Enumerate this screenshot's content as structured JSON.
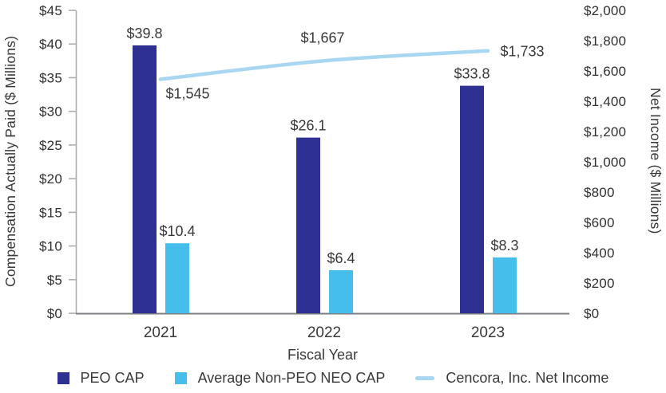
{
  "colors": {
    "axis_line": "#ACACAC",
    "baseline": "#7C7D80",
    "tick_text": "#303032",
    "label_text": "#39393B",
    "background": "#FFFFFF"
  },
  "chart_data": {
    "type": "combo-bar-line",
    "title": "",
    "categories": [
      "2021",
      "2022",
      "2023"
    ],
    "xlabel": "Fiscal Year",
    "left_axis": {
      "label": "Compensation Actually Paid ($ Millions)",
      "min": 0,
      "max": 45,
      "step": 5,
      "ticks": [
        "$45",
        "$40",
        "$35",
        "$30",
        "$25",
        "$20",
        "$15",
        "$10",
        "$5",
        "$0"
      ]
    },
    "right_axis": {
      "label": "Net Income ($ Millions)",
      "min": 0,
      "max": 2000,
      "step": 200,
      "ticks": [
        "$2,000",
        "$1,800",
        "$1,600",
        "$1,400",
        "$1,200",
        "$1,000",
        "$800",
        "$600",
        "$400",
        "$200",
        "$0"
      ]
    },
    "series": [
      {
        "name": "PEO CAP",
        "type": "bar",
        "axis": "left",
        "color": "#2E3192",
        "values": [
          39.8,
          26.1,
          33.8
        ],
        "labels": [
          "$39.8",
          "$26.1",
          "$33.8"
        ]
      },
      {
        "name": "Average Non-PEO NEO CAP",
        "type": "bar",
        "axis": "left",
        "color": "#45BEEB",
        "values": [
          10.4,
          6.4,
          8.3
        ],
        "labels": [
          "$10.4",
          "$6.4",
          "$8.3"
        ]
      },
      {
        "name": "Cencora, Inc. Net Income",
        "type": "line",
        "axis": "right",
        "color": "#A9D7F2",
        "values": [
          1545,
          1667,
          1733
        ],
        "labels": [
          "$1,545",
          "$1,667",
          "$1,733"
        ]
      }
    ],
    "legend_position": "bottom",
    "grid": false
  }
}
